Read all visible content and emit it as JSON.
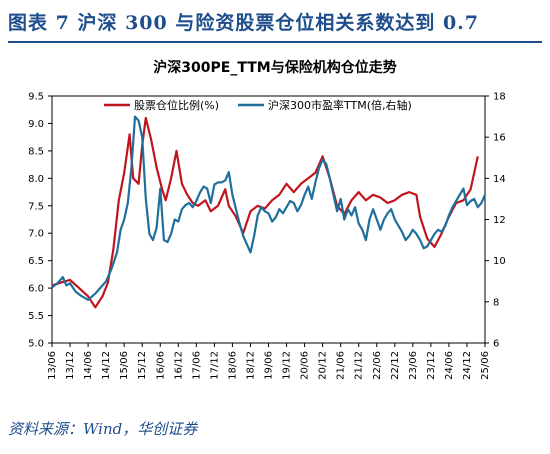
{
  "figure": {
    "title": "图表 7   沪深 300 与险资股票仓位相关系数达到 0.7",
    "source": "资料来源：Wind，华创证券"
  },
  "chart_data": {
    "type": "line",
    "title": "沪深300PE_TTM与保险机构仓位走势",
    "x_ticks": [
      "13/06",
      "13/12",
      "14/06",
      "14/12",
      "15/06",
      "15/12",
      "16/06",
      "16/12",
      "17/06",
      "17/12",
      "18/06",
      "18/12",
      "19/06",
      "19/12",
      "20/06",
      "20/12",
      "21/06",
      "21/12",
      "22/06",
      "22/12",
      "23/06",
      "23/12",
      "24/06",
      "24/12",
      "25/06"
    ],
    "x_range": [
      0,
      24
    ],
    "y_left": {
      "ticks": [
        "5.0",
        "5.5",
        "6.0",
        "6.5",
        "7.0",
        "7.5",
        "8.0",
        "8.5",
        "9.0",
        "9.5"
      ],
      "range": [
        5.0,
        9.5
      ]
    },
    "y_right": {
      "ticks": [
        "6",
        "8",
        "10",
        "12",
        "14",
        "16",
        "18"
      ],
      "range": [
        6,
        18
      ]
    },
    "grid": false,
    "legend_position": "top",
    "series": [
      {
        "name": "股票仓位比例(%)",
        "axis": "left",
        "color": "#c0141c",
        "points": [
          [
            0,
            6.05
          ],
          [
            0.5,
            6.1
          ],
          [
            1,
            6.15
          ],
          [
            1.5,
            6.0
          ],
          [
            2,
            5.85
          ],
          [
            2.4,
            5.65
          ],
          [
            2.8,
            5.85
          ],
          [
            3.1,
            6.1
          ],
          [
            3.4,
            6.7
          ],
          [
            3.7,
            7.6
          ],
          [
            4,
            8.1
          ],
          [
            4.3,
            8.8
          ],
          [
            4.5,
            8.0
          ],
          [
            4.8,
            7.9
          ],
          [
            5.0,
            8.6
          ],
          [
            5.2,
            9.1
          ],
          [
            5.5,
            8.7
          ],
          [
            5.8,
            8.2
          ],
          [
            6.1,
            7.8
          ],
          [
            6.3,
            7.6
          ],
          [
            6.6,
            8.0
          ],
          [
            6.9,
            8.5
          ],
          [
            7.2,
            7.9
          ],
          [
            7.5,
            7.7
          ],
          [
            7.8,
            7.55
          ],
          [
            8.1,
            7.5
          ],
          [
            8.5,
            7.6
          ],
          [
            8.8,
            7.4
          ],
          [
            9.2,
            7.5
          ],
          [
            9.6,
            7.8
          ],
          [
            9.8,
            7.5
          ],
          [
            10.2,
            7.3
          ],
          [
            10.6,
            7.0
          ],
          [
            11.0,
            7.4
          ],
          [
            11.4,
            7.5
          ],
          [
            11.8,
            7.45
          ],
          [
            12.2,
            7.6
          ],
          [
            12.6,
            7.7
          ],
          [
            13.0,
            7.9
          ],
          [
            13.4,
            7.75
          ],
          [
            13.8,
            7.9
          ],
          [
            14.2,
            8.0
          ],
          [
            14.6,
            8.1
          ],
          [
            15.0,
            8.4
          ],
          [
            15.4,
            8.0
          ],
          [
            15.8,
            7.5
          ],
          [
            16.2,
            7.35
          ],
          [
            16.6,
            7.6
          ],
          [
            17.0,
            7.75
          ],
          [
            17.4,
            7.6
          ],
          [
            17.8,
            7.7
          ],
          [
            18.2,
            7.65
          ],
          [
            18.6,
            7.55
          ],
          [
            19.0,
            7.6
          ],
          [
            19.4,
            7.7
          ],
          [
            19.8,
            7.75
          ],
          [
            20.2,
            7.7
          ],
          [
            20.4,
            7.3
          ],
          [
            20.8,
            6.9
          ],
          [
            21.2,
            6.75
          ],
          [
            21.6,
            7.0
          ],
          [
            22.0,
            7.3
          ],
          [
            22.4,
            7.55
          ],
          [
            22.8,
            7.6
          ],
          [
            23.2,
            7.8
          ],
          [
            23.6,
            8.4
          ]
        ]
      },
      {
        "name": "沪深300市盈率TTM(倍,右轴)",
        "axis": "right",
        "color": "#1f6f9c",
        "points": [
          [
            0,
            8.7
          ],
          [
            0.3,
            8.9
          ],
          [
            0.6,
            9.2
          ],
          [
            0.8,
            8.8
          ],
          [
            1.0,
            8.9
          ],
          [
            1.3,
            8.5
          ],
          [
            1.6,
            8.3
          ],
          [
            2.0,
            8.1
          ],
          [
            2.4,
            8.4
          ],
          [
            2.8,
            8.8
          ],
          [
            3.0,
            9.0
          ],
          [
            3.3,
            9.6
          ],
          [
            3.6,
            10.4
          ],
          [
            3.8,
            11.5
          ],
          [
            4.0,
            12.0
          ],
          [
            4.2,
            12.8
          ],
          [
            4.4,
            14.5
          ],
          [
            4.6,
            17.0
          ],
          [
            4.8,
            16.8
          ],
          [
            5.0,
            16.0
          ],
          [
            5.2,
            13.0
          ],
          [
            5.4,
            11.3
          ],
          [
            5.6,
            11.0
          ],
          [
            5.8,
            11.6
          ],
          [
            6.0,
            13.5
          ],
          [
            6.2,
            11.0
          ],
          [
            6.4,
            10.9
          ],
          [
            6.6,
            11.3
          ],
          [
            6.8,
            12.0
          ],
          [
            7.0,
            11.9
          ],
          [
            7.2,
            12.5
          ],
          [
            7.4,
            12.7
          ],
          [
            7.6,
            12.8
          ],
          [
            7.8,
            12.6
          ],
          [
            8.0,
            12.9
          ],
          [
            8.2,
            13.3
          ],
          [
            8.4,
            13.6
          ],
          [
            8.6,
            13.5
          ],
          [
            8.8,
            12.8
          ],
          [
            9.0,
            13.7
          ],
          [
            9.2,
            13.8
          ],
          [
            9.4,
            13.8
          ],
          [
            9.6,
            13.9
          ],
          [
            9.8,
            14.3
          ],
          [
            10.0,
            13.2
          ],
          [
            10.2,
            12.5
          ],
          [
            10.4,
            11.8
          ],
          [
            10.6,
            11.2
          ],
          [
            10.8,
            10.8
          ],
          [
            11.0,
            10.4
          ],
          [
            11.2,
            11.2
          ],
          [
            11.4,
            12.2
          ],
          [
            11.6,
            12.6
          ],
          [
            11.8,
            12.4
          ],
          [
            12.0,
            12.3
          ],
          [
            12.2,
            11.9
          ],
          [
            12.4,
            12.1
          ],
          [
            12.6,
            12.5
          ],
          [
            12.8,
            12.3
          ],
          [
            13.0,
            12.6
          ],
          [
            13.2,
            12.9
          ],
          [
            13.4,
            12.8
          ],
          [
            13.6,
            12.4
          ],
          [
            13.8,
            12.7
          ],
          [
            14.0,
            13.2
          ],
          [
            14.2,
            13.6
          ],
          [
            14.4,
            13.0
          ],
          [
            14.6,
            13.8
          ],
          [
            14.8,
            14.5
          ],
          [
            15.0,
            14.9
          ],
          [
            15.2,
            14.7
          ],
          [
            15.4,
            14.0
          ],
          [
            15.6,
            13.2
          ],
          [
            15.8,
            12.4
          ],
          [
            16.0,
            13.0
          ],
          [
            16.2,
            12.0
          ],
          [
            16.4,
            12.5
          ],
          [
            16.6,
            12.2
          ],
          [
            16.8,
            12.6
          ],
          [
            17.0,
            11.8
          ],
          [
            17.2,
            11.5
          ],
          [
            17.4,
            11.0
          ],
          [
            17.6,
            12.0
          ],
          [
            17.8,
            12.5
          ],
          [
            18.0,
            12.0
          ],
          [
            18.2,
            11.5
          ],
          [
            18.4,
            12.0
          ],
          [
            18.6,
            12.3
          ],
          [
            18.8,
            12.5
          ],
          [
            19.0,
            12.0
          ],
          [
            19.2,
            11.7
          ],
          [
            19.4,
            11.4
          ],
          [
            19.6,
            11.0
          ],
          [
            19.8,
            11.2
          ],
          [
            20.0,
            11.5
          ],
          [
            20.2,
            11.3
          ],
          [
            20.4,
            11.0
          ],
          [
            20.6,
            10.6
          ],
          [
            20.8,
            10.7
          ],
          [
            21.0,
            11.0
          ],
          [
            21.2,
            11.3
          ],
          [
            21.4,
            11.5
          ],
          [
            21.6,
            11.4
          ],
          [
            21.8,
            11.7
          ],
          [
            22.0,
            12.2
          ],
          [
            22.2,
            12.6
          ],
          [
            22.4,
            12.9
          ],
          [
            22.6,
            13.2
          ],
          [
            22.8,
            13.5
          ],
          [
            23.0,
            12.7
          ],
          [
            23.2,
            12.9
          ],
          [
            23.4,
            13.0
          ],
          [
            23.6,
            12.6
          ],
          [
            23.8,
            12.8
          ],
          [
            24.0,
            13.2
          ]
        ]
      }
    ]
  }
}
